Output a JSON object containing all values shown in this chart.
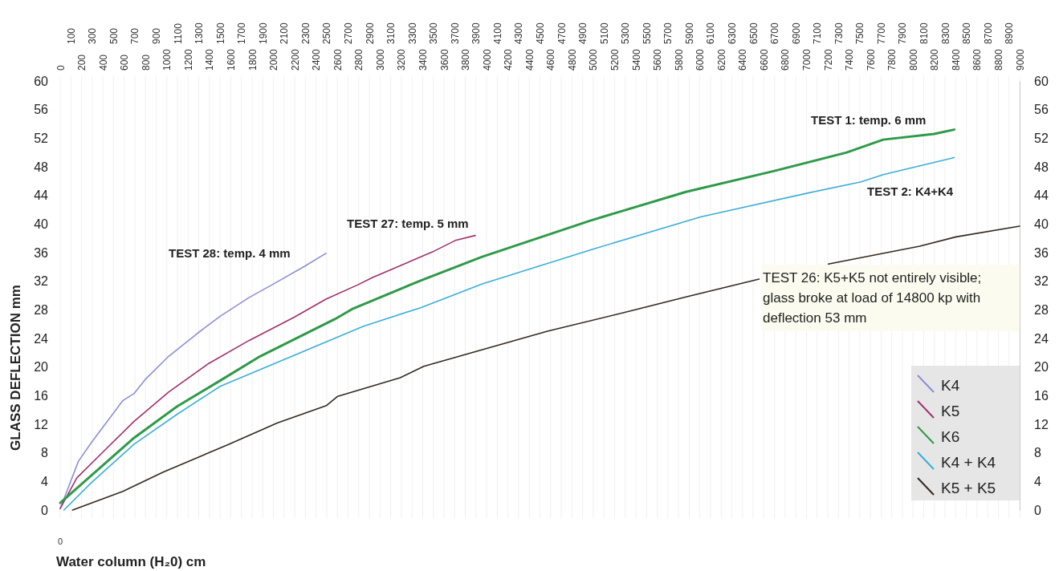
{
  "chart_data": {
    "type": "line",
    "xlabel": "Water column (H₂0) cm",
    "ylabel": "GLASS DEFLECTION mm",
    "xlim": [
      0,
      9000
    ],
    "xticks": [
      0,
      200,
      400,
      600,
      800,
      1000,
      1200,
      1400,
      1600,
      1800,
      2000,
      2200,
      2400,
      2600,
      2800,
      3000,
      3200,
      3400,
      3600,
      3800,
      4000,
      4200,
      4400,
      4600,
      4800,
      5000,
      5200,
      5400,
      5600,
      5800,
      6000,
      6200,
      6400,
      6600,
      6800,
      7000,
      7200,
      7400,
      7600,
      7800,
      8000,
      8200,
      8400,
      8600,
      8800,
      9000
    ],
    "x2lim": [
      0,
      9000
    ],
    "x2ticks": [
      100,
      300,
      500,
      700,
      900,
      1100,
      1300,
      1500,
      1700,
      1900,
      2100,
      2300,
      2500,
      2700,
      2900,
      3100,
      3300,
      3500,
      3700,
      3900,
      4100,
      4300,
      4500,
      4700,
      4900,
      5100,
      5300,
      5500,
      5700,
      5900,
      6100,
      6300,
      6500,
      6700,
      6900,
      7100,
      7300,
      7500,
      7700,
      7900,
      8100,
      8300,
      8500,
      8700,
      8900
    ],
    "ylim": [
      0,
      60
    ],
    "yticks": [
      0,
      4,
      8,
      12,
      16,
      20,
      24,
      28,
      32,
      36,
      40,
      44,
      48,
      52,
      56,
      60
    ],
    "y2lim": [
      0,
      60
    ],
    "y2ticks": [
      0,
      4,
      8,
      12,
      16,
      20,
      24,
      28,
      32,
      36,
      40,
      44,
      48,
      52,
      56,
      60
    ],
    "grid": "x",
    "legend": "bottom right",
    "marker": "none",
    "line_style": "solid",
    "series": [
      {
        "name": "K4",
        "color": "#8c8fd6",
        "x": [
          0,
          170,
          290,
          587,
          693,
          800,
          1017,
          1286,
          1500,
          1770,
          2010,
          2293,
          2493
        ],
        "values": [
          0.2,
          6.8,
          9.4,
          15.3,
          16.3,
          18.3,
          21.5,
          24.7,
          27.1,
          29.7,
          31.7,
          34.1,
          35.9
        ]
      },
      {
        "name": "K5",
        "color": "#a0306a",
        "x": [
          0,
          156,
          400,
          693,
          1017,
          1393,
          1770,
          2199,
          2493,
          2792,
          2926,
          3492,
          3706,
          3894
        ],
        "values": [
          0.2,
          4.5,
          8.1,
          12.4,
          16.5,
          20.5,
          23.7,
          27,
          29.5,
          31.5,
          32.5,
          36.1,
          37.7,
          38.4
        ]
      },
      {
        "name": "K6",
        "color": "#2e9a48",
        "x": [
          0,
          290,
          693,
          1097,
          1500,
          1875,
          2576,
          2738,
          3381,
          3954,
          4978,
          5870,
          6692,
          7377,
          7720,
          8198,
          8386
        ],
        "values": [
          1,
          4.8,
          10.1,
          14.5,
          18.1,
          21.5,
          26.7,
          28.1,
          32.1,
          35.4,
          40.5,
          44.5,
          47.4,
          50,
          51.8,
          52.6,
          53.2
        ]
      },
      {
        "name": "K4 + K4",
        "color": "#3aaed8",
        "x": [
          35,
          290,
          693,
          1097,
          1500,
          2173,
          2846,
          3381,
          3954,
          4978,
          6007,
          7034,
          7513,
          7720,
          8386
        ],
        "values": [
          0,
          3.8,
          9.2,
          13.4,
          17.3,
          21.5,
          25.7,
          28.3,
          31.6,
          36.4,
          41,
          44.4,
          45.9,
          46.9,
          49.3
        ]
      },
      {
        "name": "K5 + K5",
        "color": "#33281f",
        "x": [
          116,
          587,
          965,
          1582,
          2039,
          2496,
          2603,
          3189,
          3411,
          3954,
          4570,
          5393,
          5870,
          6556,
          6900,
          7205,
          8062,
          8403,
          9000
        ],
        "values": [
          0,
          2.6,
          5.3,
          9.2,
          12.2,
          14.6,
          15.9,
          18.5,
          20.1,
          22.4,
          25,
          28,
          29.8,
          32.3,
          null,
          34.4,
          36.9,
          38.2,
          39.7
        ]
      }
    ],
    "annotations": [
      "TEST 1: temp. 6 mm",
      "TEST 2: K4+K4",
      "TEST 27: temp. 5 mm",
      "TEST 28: temp. 4 mm",
      "TEST 26: K5+K5 not entirely visible; glass broke at load of 14800 kp with deflection 53 mm",
      "0"
    ]
  }
}
